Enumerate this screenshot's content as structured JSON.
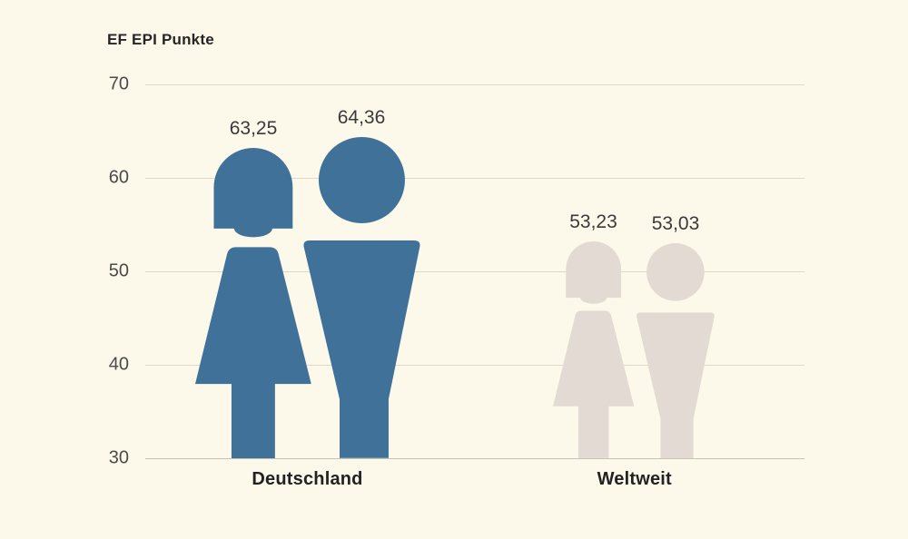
{
  "title": "EF EPI Punkte",
  "chart_data": {
    "type": "pictogram-bar",
    "title": "EF EPI Punkte",
    "categories": [
      "Deutschland",
      "Weltweit"
    ],
    "series": [
      {
        "name": "female",
        "icon": "female-icon",
        "values": [
          63.25,
          53.23
        ],
        "value_labels": [
          "63,25",
          "53,23"
        ]
      },
      {
        "name": "male",
        "icon": "male-icon",
        "values": [
          64.36,
          53.03
        ],
        "value_labels": [
          "64,36",
          "53,03"
        ]
      }
    ],
    "ylim": [
      30,
      70
    ],
    "yticks": [
      70,
      60,
      50,
      40,
      30
    ],
    "grid": true,
    "legend": "none",
    "category_colors": [
      "#3f7199",
      "#e2dad3"
    ],
    "colors": {
      "background": "#fcf9ea",
      "gridline": "#dcd9cb",
      "baseline": "#c6c3b6",
      "tick_text": "#4a4a4a",
      "label_text": "#3a3a3a",
      "title_text": "#262626"
    }
  }
}
